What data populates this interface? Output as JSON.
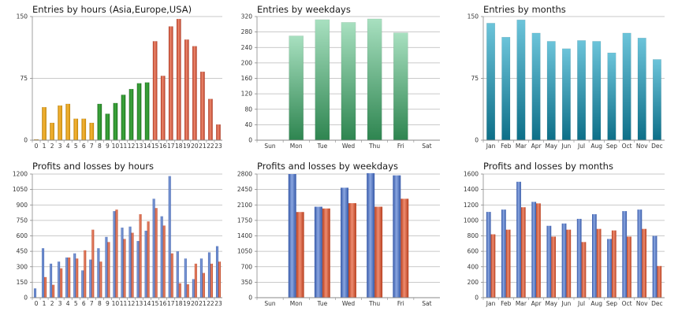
{
  "colors": {
    "grid": "#b8b8b8",
    "axis": "#888888",
    "blue": "#4d73c1",
    "red": "#d05a3a"
  },
  "chart_data": [
    {
      "type": "bar",
      "title": "Entries by hours (Asia,Europe,USA)",
      "categories": [
        "0",
        "1",
        "2",
        "3",
        "4",
        "5",
        "6",
        "7",
        "8",
        "9",
        "10",
        "11",
        "12",
        "13",
        "14",
        "15",
        "16",
        "17",
        "18",
        "19",
        "20",
        "21",
        "22",
        "23"
      ],
      "values": [
        1,
        40,
        21,
        42,
        44,
        26,
        26,
        21,
        44,
        32,
        45,
        55,
        62,
        69,
        70,
        120,
        78,
        138,
        147,
        122,
        114,
        83,
        50,
        19
      ],
      "bar_colors": [
        "orange",
        "orange",
        "orange",
        "orange",
        "orange",
        "orange",
        "orange",
        "orange",
        "green",
        "green",
        "green",
        "green",
        "green",
        "green",
        "green",
        "red",
        "red",
        "red",
        "red",
        "red",
        "red",
        "red",
        "red",
        "red"
      ],
      "ylim": [
        0,
        150
      ],
      "yticks": [
        0,
        75,
        150
      ]
    },
    {
      "type": "bar",
      "title": "Entries by weekdays",
      "categories": [
        "Sun",
        "Mon",
        "Tue",
        "Wed",
        "Thu",
        "Fri",
        "Sat"
      ],
      "values": [
        0,
        270,
        312,
        305,
        314,
        278,
        0
      ],
      "bar_color": "green",
      "ylim": [
        0,
        320
      ],
      "yticks": [
        0,
        40,
        80,
        120,
        160,
        200,
        240,
        280,
        320
      ]
    },
    {
      "type": "bar",
      "title": "Entries by months",
      "categories": [
        "Jan",
        "Feb",
        "Mar",
        "Apr",
        "May",
        "Jun",
        "Jul",
        "Aug",
        "Sep",
        "Oct",
        "Nov",
        "Dec"
      ],
      "values": [
        142,
        125,
        146,
        130,
        120,
        111,
        121,
        120,
        106,
        130,
        124,
        98
      ],
      "bar_color": "teal",
      "ylim": [
        0,
        150
      ],
      "yticks": [
        0,
        75,
        150
      ]
    },
    {
      "type": "bar",
      "title": "Profits and losses by hours",
      "categories": [
        "0",
        "1",
        "2",
        "3",
        "4",
        "5",
        "6",
        "7",
        "8",
        "9",
        "10",
        "11",
        "12",
        "13",
        "14",
        "15",
        "16",
        "17",
        "18",
        "19",
        "20",
        "21",
        "22",
        "23"
      ],
      "series": [
        {
          "name": "Profits",
          "color": "blue",
          "values": [
            90,
            480,
            330,
            350,
            390,
            430,
            265,
            370,
            480,
            590,
            840,
            680,
            690,
            550,
            650,
            960,
            790,
            1180,
            450,
            380,
            180,
            380,
            440,
            500
          ]
        },
        {
          "name": "Losses",
          "color": "red",
          "values": [
            0,
            200,
            125,
            285,
            390,
            380,
            460,
            660,
            350,
            540,
            855,
            570,
            630,
            810,
            740,
            870,
            700,
            430,
            140,
            130,
            330,
            240,
            330,
            350
          ]
        }
      ],
      "ylim": [
        0,
        1200
      ],
      "yticks": [
        0,
        150,
        300,
        450,
        600,
        750,
        900,
        1050,
        1200
      ]
    },
    {
      "type": "bar",
      "title": "Profits and losses by weekdays",
      "categories": [
        "Sun",
        "Mon",
        "Tue",
        "Wed",
        "Thu",
        "Fri",
        "Sat"
      ],
      "series": [
        {
          "name": "Profits",
          "color": "blue",
          "values": [
            0,
            2800,
            2060,
            2490,
            2820,
            2770,
            0
          ]
        },
        {
          "name": "Losses",
          "color": "red",
          "values": [
            0,
            1940,
            2020,
            2140,
            2060,
            2240,
            0
          ]
        }
      ],
      "ylim": [
        0,
        2800
      ],
      "yticks": [
        0,
        350,
        700,
        1050,
        1400,
        1750,
        2100,
        2450,
        2800
      ]
    },
    {
      "type": "bar",
      "title": "Profits and losses by months",
      "categories": [
        "Jan",
        "Feb",
        "Mar",
        "Apr",
        "May",
        "Jun",
        "Jul",
        "Aug",
        "Sep",
        "Oct",
        "Nov",
        "Dec"
      ],
      "series": [
        {
          "name": "Profits",
          "color": "blue",
          "values": [
            1110,
            1140,
            1500,
            1240,
            930,
            960,
            1020,
            1080,
            760,
            1120,
            1140,
            800
          ]
        },
        {
          "name": "Losses",
          "color": "red",
          "values": [
            820,
            880,
            1170,
            1220,
            790,
            880,
            720,
            890,
            870,
            790,
            890,
            410
          ]
        }
      ],
      "ylim": [
        0,
        1600
      ],
      "yticks": [
        0,
        200,
        400,
        600,
        800,
        1000,
        1200,
        1400,
        1600
      ]
    }
  ]
}
